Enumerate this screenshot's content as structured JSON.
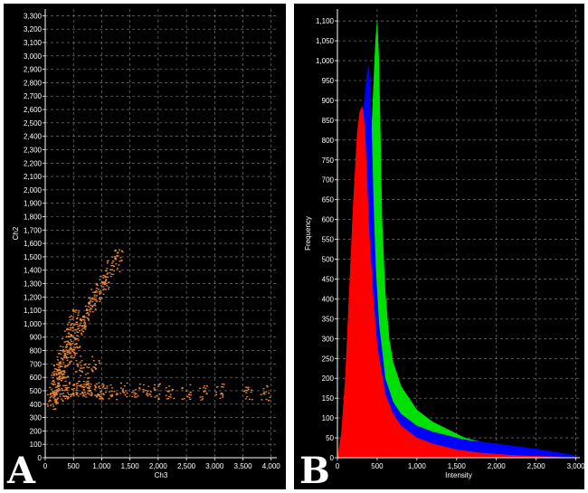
{
  "chart_data": [
    {
      "panel": "A",
      "type": "scatter",
      "xlabel": "Ch3",
      "ylabel": "Ch2",
      "xlim": [
        0,
        4100
      ],
      "ylim": [
        0,
        3350
      ],
      "x_ticks": [
        "0",
        "500",
        "1,000",
        "1,500",
        "2,000",
        "2,500",
        "3,000",
        "3,500",
        "4,000"
      ],
      "y_ticks": [
        "0",
        "100",
        "200",
        "300",
        "400",
        "500",
        "600",
        "700",
        "800",
        "900",
        "1,000",
        "1,100",
        "1,200",
        "1,300",
        "1,400",
        "1,500",
        "1,600",
        "1,700",
        "1,800",
        "1,900",
        "2,000",
        "2,100",
        "2,200",
        "2,300",
        "2,400",
        "2,500",
        "2,600",
        "2,700",
        "2,800",
        "2,900",
        "3,000",
        "3,100",
        "3,200",
        "3,300"
      ],
      "grid": true,
      "point_color": "#e8873a",
      "points": [
        [
          150,
          480
        ],
        [
          200,
          520
        ],
        [
          250,
          560
        ],
        [
          300,
          600
        ],
        [
          350,
          650
        ],
        [
          400,
          700
        ],
        [
          450,
          760
        ],
        [
          500,
          820
        ],
        [
          550,
          880
        ],
        [
          600,
          930
        ],
        [
          650,
          980
        ],
        [
          700,
          1030
        ],
        [
          750,
          1080
        ],
        [
          800,
          1120
        ],
        [
          850,
          1160
        ],
        [
          900,
          1200
        ],
        [
          950,
          1240
        ],
        [
          1000,
          1280
        ],
        [
          1050,
          1320
        ],
        [
          1100,
          1350
        ],
        [
          180,
          600
        ],
        [
          220,
          650
        ],
        [
          260,
          700
        ],
        [
          300,
          750
        ],
        [
          340,
          800
        ],
        [
          380,
          850
        ],
        [
          420,
          900
        ],
        [
          460,
          950
        ],
        [
          500,
          1000
        ],
        [
          540,
          1050
        ],
        [
          120,
          420
        ],
        [
          160,
          450
        ],
        [
          240,
          470
        ],
        [
          320,
          490
        ],
        [
          400,
          500
        ],
        [
          480,
          510
        ],
        [
          560,
          520
        ],
        [
          640,
          520
        ],
        [
          720,
          515
        ],
        [
          800,
          510
        ],
        [
          880,
          505
        ],
        [
          960,
          500
        ],
        [
          1040,
          498
        ],
        [
          1200,
          495
        ],
        [
          1400,
          500
        ],
        [
          1600,
          498
        ],
        [
          1800,
          500
        ],
        [
          2000,
          495
        ],
        [
          2200,
          500
        ],
        [
          2500,
          490
        ],
        [
          2800,
          492
        ],
        [
          3100,
          495
        ],
        [
          3600,
          492
        ],
        [
          3900,
          485
        ],
        [
          1300,
          1500
        ],
        [
          1250,
          1450
        ],
        [
          1150,
          1420
        ],
        [
          700,
          650
        ],
        [
          600,
          700
        ],
        [
          900,
          700
        ]
      ]
    },
    {
      "panel": "B",
      "type": "area",
      "xlabel": "Intensity",
      "ylabel": "Frequency",
      "xlim": [
        0,
        3050
      ],
      "ylim": [
        0,
        1130
      ],
      "x_ticks": [
        "0",
        "500",
        "1,000",
        "1,500",
        "2,000",
        "2,500",
        "3,000"
      ],
      "y_ticks": [
        "0",
        "50",
        "100",
        "150",
        "200",
        "250",
        "300",
        "350",
        "400",
        "450",
        "500",
        "550",
        "600",
        "650",
        "700",
        "750",
        "800",
        "850",
        "900",
        "950",
        "1,000",
        "1,050",
        "1,100"
      ],
      "grid": true,
      "series": [
        {
          "color": "#00e000",
          "x": [
            0,
            100,
            200,
            300,
            350,
            400,
            430,
            460,
            480,
            500,
            520,
            540,
            560,
            600,
            650,
            700,
            800,
            900,
            1000,
            1200,
            1400,
            1600,
            1800,
            2000,
            2200,
            2500,
            2800,
            3000
          ],
          "values": [
            0,
            20,
            80,
            250,
            420,
            650,
            820,
            960,
            1050,
            1100,
            1010,
            820,
            600,
            420,
            300,
            240,
            180,
            150,
            120,
            90,
            70,
            50,
            40,
            30,
            20,
            12,
            6,
            3
          ]
        },
        {
          "color": "#0000ff",
          "x": [
            0,
            100,
            150,
            200,
            250,
            300,
            340,
            370,
            390,
            410,
            430,
            450,
            480,
            520,
            600,
            700,
            800,
            1000,
            1200,
            1400,
            1600,
            1800,
            2000,
            2200,
            2500,
            2800,
            3000
          ],
          "values": [
            0,
            30,
            150,
            350,
            560,
            780,
            900,
            960,
            990,
            940,
            820,
            660,
            480,
            340,
            200,
            140,
            110,
            80,
            65,
            55,
            45,
            40,
            35,
            30,
            22,
            12,
            5
          ]
        },
        {
          "color": "#ff0000",
          "x": [
            0,
            50,
            100,
            150,
            200,
            250,
            280,
            310,
            330,
            350,
            370,
            400,
            450,
            500,
            600,
            700,
            800,
            1000,
            1200,
            1500,
            1800,
            2200,
            2600,
            3000
          ],
          "values": [
            0,
            60,
            200,
            420,
            640,
            820,
            870,
            885,
            860,
            800,
            700,
            560,
            400,
            280,
            160,
            110,
            80,
            50,
            35,
            20,
            12,
            6,
            3,
            1
          ]
        }
      ]
    }
  ],
  "labels": {
    "panel_a": "A",
    "panel_b": "B"
  }
}
